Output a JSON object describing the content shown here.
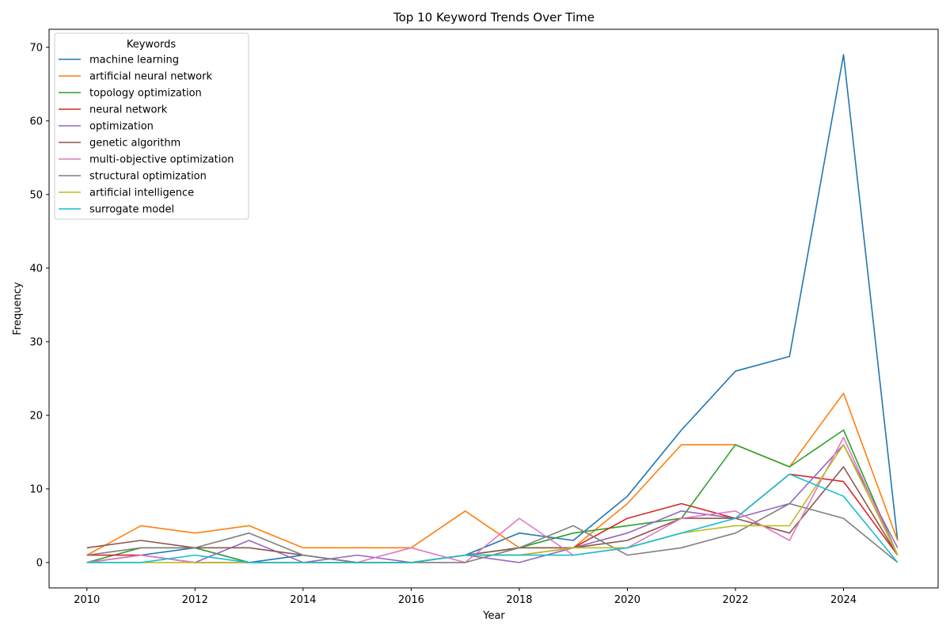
{
  "chart_data": {
    "type": "line",
    "title": "Top 10 Keyword Trends Over Time",
    "xlabel": "Year",
    "ylabel": "Frequency",
    "xlim": [
      2009.3,
      2025.75
    ],
    "ylim": [
      -3.45,
      72.45
    ],
    "xticks": [
      2010,
      2012,
      2014,
      2016,
      2018,
      2020,
      2022,
      2024
    ],
    "yticks": [
      0,
      10,
      20,
      30,
      40,
      50,
      60,
      70
    ],
    "grid": false,
    "legend_title": "Keywords",
    "legend_position": "top-left",
    "x": [
      2010,
      2011,
      2012,
      2013,
      2014,
      2015,
      2016,
      2017,
      2018,
      2019,
      2020,
      2021,
      2022,
      2023,
      2024,
      2025
    ],
    "series": [
      {
        "name": "machine learning",
        "color": "#1f77b4",
        "values": [
          0,
          1,
          2,
          0,
          1,
          0,
          0,
          1,
          4,
          3,
          9,
          18,
          26,
          28,
          69,
          3
        ]
      },
      {
        "name": "artificial neural network",
        "color": "#ff7f0e",
        "values": [
          1,
          5,
          4,
          5,
          2,
          2,
          2,
          7,
          2,
          2,
          8,
          16,
          16,
          13,
          23,
          3
        ]
      },
      {
        "name": "topology optimization",
        "color": "#2ca02c",
        "values": [
          0,
          2,
          2,
          0,
          0,
          0,
          0,
          1,
          2,
          4,
          5,
          6,
          16,
          13,
          18,
          1
        ]
      },
      {
        "name": "neural network",
        "color": "#d62728",
        "values": [
          1,
          1,
          0,
          0,
          0,
          0,
          0,
          1,
          1,
          2,
          6,
          8,
          6,
          12,
          11,
          1
        ]
      },
      {
        "name": "optimization",
        "color": "#9467bd",
        "values": [
          0,
          1,
          0,
          3,
          0,
          1,
          0,
          1,
          0,
          2,
          4,
          7,
          6,
          8,
          16,
          2
        ]
      },
      {
        "name": "genetic algorithm",
        "color": "#8c564b",
        "values": [
          2,
          3,
          2,
          2,
          1,
          0,
          0,
          1,
          2,
          2,
          3,
          6,
          6,
          4,
          13,
          1
        ]
      },
      {
        "name": "multi-objective optimization",
        "color": "#e377c2",
        "values": [
          0,
          1,
          0,
          0,
          0,
          0,
          2,
          0,
          6,
          1,
          2,
          6,
          7,
          3,
          17,
          1
        ]
      },
      {
        "name": "structural optimization",
        "color": "#7f7f7f",
        "values": [
          1,
          2,
          2,
          4,
          1,
          0,
          0,
          0,
          2,
          5,
          1,
          2,
          4,
          8,
          6,
          0
        ]
      },
      {
        "name": "artificial intelligence",
        "color": "#bcbd22",
        "values": [
          0,
          0,
          0,
          0,
          0,
          0,
          0,
          1,
          1,
          2,
          2,
          4,
          5,
          5,
          16,
          1
        ]
      },
      {
        "name": "surrogate model",
        "color": "#17becf",
        "values": [
          0,
          0,
          1,
          0,
          0,
          0,
          0,
          1,
          1,
          1,
          2,
          4,
          6,
          12,
          9,
          0
        ]
      }
    ]
  }
}
